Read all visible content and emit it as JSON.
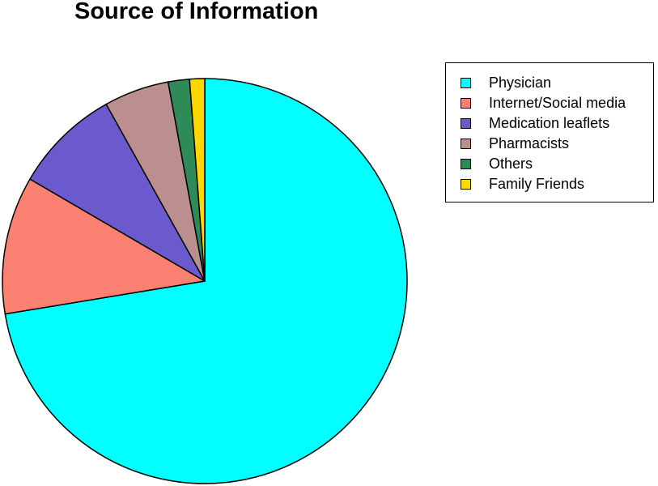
{
  "chart_data": {
    "type": "pie",
    "title": "Source of Information",
    "categories": [
      "Physician",
      "Internet/Social media",
      "Medication leaflets",
      "Pharmacists",
      "Others",
      "Family Friends"
    ],
    "values": [
      72.4,
      11.0,
      8.5,
      5.2,
      1.7,
      1.2
    ],
    "colors": [
      "#00ffff",
      "#fa8072",
      "#6a5acd",
      "#bc8f8f",
      "#2e8b57",
      "#ffd700"
    ],
    "start": "12 o'clock",
    "direction": "clockwise",
    "legend_position": "right"
  }
}
